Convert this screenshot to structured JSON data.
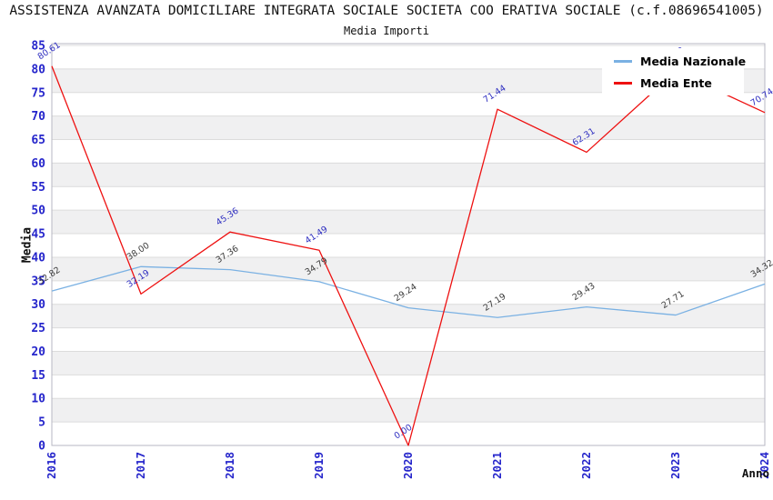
{
  "header": {
    "title": "ASSISTENZA AVANZATA DOMICILIARE INTEGRATA SOCIALE SOCIETA COO ERATIVA SOCIALE (c.f.08696541005)",
    "subtitle": "Media Importi"
  },
  "colors": {
    "background": "#ffffff",
    "band": "#f0f0f1",
    "gridline": "#dcdcdc",
    "axis_frame": "#b7b7c3",
    "tick_label": "#2525cb",
    "media_nazionale": "#7ab1e3",
    "media_ente": "#ee1111",
    "label_nazionale": "#3a3a3a",
    "label_ente": "#2d2dc0"
  },
  "chart_data": {
    "type": "line",
    "title": "ASSISTENZA AVANZATA DOMICILIARE INTEGRATA SOCIALE SOCIETA COO ERATIVA SOCIALE (c.f.08696541005)",
    "subtitle": "Media Importi",
    "xlabel": "Anno",
    "ylabel": "Media",
    "x_categories": [
      "2016",
      "2017",
      "2018",
      "2019",
      "2020",
      "2021",
      "2022",
      "2023",
      "2024"
    ],
    "ylim": [
      0,
      85
    ],
    "ytick_step": 5,
    "grid_bands": true,
    "legend_position": "top-right",
    "series": [
      {
        "name": "Media Nazionale",
        "color": "#7ab1e3",
        "label_color": "#3a3a3a",
        "values": [
          32.82,
          38.0,
          37.36,
          34.79,
          29.24,
          27.19,
          29.43,
          27.71,
          34.32
        ],
        "point_labels": [
          "32.82",
          "38.00",
          "37.36",
          "34.79",
          "29.24",
          "27.19",
          "29.43",
          "27.71",
          "34.32"
        ]
      },
      {
        "name": "Media Ente",
        "color": "#ee1111",
        "label_color": "#2d2dc0",
        "values": [
          80.61,
          32.19,
          45.36,
          41.49,
          0.0,
          71.44,
          62.31,
          79.5,
          70.74
        ],
        "point_labels": [
          "80.61",
          "32.19",
          "45.36",
          "41.49",
          "0.00",
          "71.44",
          "62.31",
          "79.50",
          "70.74"
        ]
      }
    ]
  }
}
